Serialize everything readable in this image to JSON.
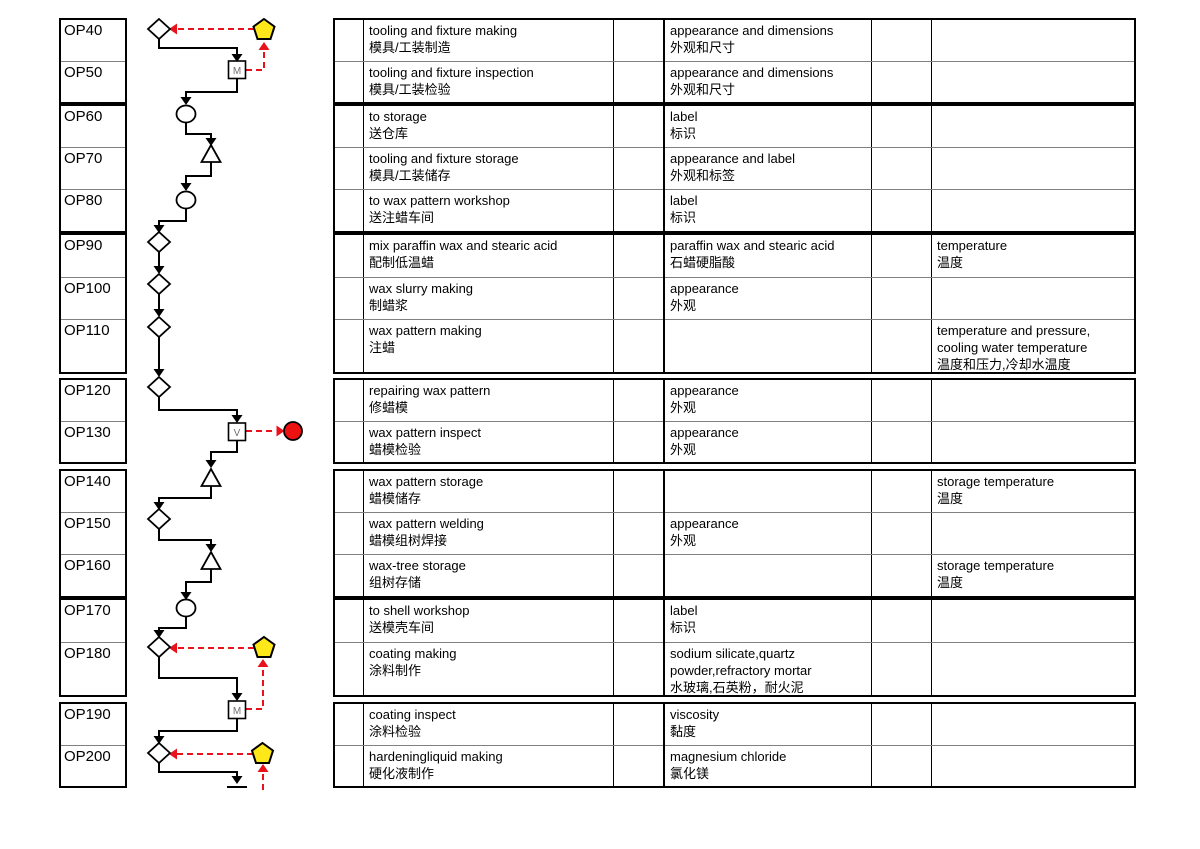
{
  "document": {
    "type": "process flow chart",
    "language": "English / Chinese"
  },
  "colors": {
    "line_black": "#000000",
    "grid_thin_gray": "#808080",
    "connector_red": "#e8111c",
    "pentagon_yellow": "#ffe81a",
    "alert_circle_red": "#ee1111",
    "box_letter_gray": "#707070",
    "background": "#ffffff"
  },
  "rows": [
    {
      "op": "OP40",
      "symbol": "diamond",
      "marker": "yellow-pentagon",
      "symbol_label": "",
      "operation_en": "tooling and fixture making",
      "operation_cn": "模具/工装制造",
      "characteristic_en": "appearance and dimensions",
      "characteristic_cn": "外观和尺寸",
      "control_en": "",
      "control_cn": ""
    },
    {
      "op": "OP50",
      "symbol": "square",
      "marker": "",
      "symbol_label": "M",
      "operation_en": "tooling and fixture inspection",
      "operation_cn": "模具/工装检验",
      "characteristic_en": "appearance and dimensions",
      "characteristic_cn": "外观和尺寸",
      "control_en": "",
      "control_cn": ""
    },
    {
      "op": "OP60",
      "symbol": "circle",
      "marker": "",
      "symbol_label": "",
      "operation_en": "to storage",
      "operation_cn": "送仓库",
      "characteristic_en": "label",
      "characteristic_cn": "标识",
      "control_en": "",
      "control_cn": ""
    },
    {
      "op": "OP70",
      "symbol": "triangle",
      "marker": "",
      "symbol_label": "",
      "operation_en": "tooling and fixture storage",
      "operation_cn": "模具/工装储存",
      "characteristic_en": "appearance and label",
      "characteristic_cn": "外观和标签",
      "control_en": "",
      "control_cn": ""
    },
    {
      "op": "OP80",
      "symbol": "circle",
      "marker": "",
      "symbol_label": "",
      "operation_en": "to wax pattern workshop",
      "operation_cn": "送注蜡车间",
      "characteristic_en": "label",
      "characteristic_cn": "标识",
      "control_en": "",
      "control_cn": ""
    },
    {
      "op": "OP90",
      "symbol": "diamond",
      "marker": "",
      "symbol_label": "",
      "operation_en": "mix paraffin wax and stearic acid",
      "operation_cn": "配制低温蜡",
      "characteristic_en": "paraffin wax and stearic acid",
      "characteristic_cn": "石蜡硬脂酸",
      "control_en": "temperature",
      "control_cn": "温度"
    },
    {
      "op": "OP100",
      "symbol": "diamond",
      "marker": "",
      "symbol_label": "",
      "operation_en": "wax slurry making",
      "operation_cn": "制蜡浆",
      "characteristic_en": "appearance",
      "characteristic_cn": "外观",
      "control_en": "",
      "control_cn": ""
    },
    {
      "op": "OP110",
      "symbol": "diamond",
      "marker": "",
      "symbol_label": "",
      "operation_en": "wax pattern making",
      "operation_cn": "注蜡",
      "characteristic_en": "",
      "characteristic_cn": "",
      "control_en": "temperature and pressure, cooling water temperature",
      "control_cn": "温度和压力,冷却水温度"
    },
    {
      "op": "OP120",
      "symbol": "diamond",
      "marker": "",
      "symbol_label": "",
      "operation_en": "repairing wax pattern",
      "operation_cn": "修蜡模",
      "characteristic_en": "appearance",
      "characteristic_cn": "外观",
      "control_en": "",
      "control_cn": ""
    },
    {
      "op": "OP130",
      "symbol": "square",
      "marker": "red-circle",
      "symbol_label": "V",
      "operation_en": "wax pattern inspect",
      "operation_cn": "蜡模检验",
      "characteristic_en": "appearance",
      "characteristic_cn": "外观",
      "control_en": "",
      "control_cn": ""
    },
    {
      "op": "OP140",
      "symbol": "triangle",
      "marker": "",
      "symbol_label": "",
      "operation_en": "wax pattern storage",
      "operation_cn": "蜡模储存",
      "characteristic_en": "",
      "characteristic_cn": "",
      "control_en": "storage temperature",
      "control_cn": "温度"
    },
    {
      "op": "OP150",
      "symbol": "diamond",
      "marker": "",
      "symbol_label": "",
      "operation_en": "wax pattern welding",
      "operation_cn": "蜡模组树焊接",
      "characteristic_en": "appearance",
      "characteristic_cn": "外观",
      "control_en": "",
      "control_cn": ""
    },
    {
      "op": "OP160",
      "symbol": "triangle",
      "marker": "",
      "symbol_label": "",
      "operation_en": "wax-tree storage",
      "operation_cn": "组树存储",
      "characteristic_en": "",
      "characteristic_cn": "",
      "control_en": "storage temperature",
      "control_cn": "温度"
    },
    {
      "op": "OP170",
      "symbol": "circle",
      "marker": "",
      "symbol_label": "",
      "operation_en": "to shell workshop",
      "operation_cn": "送模壳车间",
      "characteristic_en": "label",
      "characteristic_cn": "标识",
      "control_en": "",
      "control_cn": ""
    },
    {
      "op": "OP180",
      "symbol": "diamond",
      "marker": "yellow-pentagon",
      "symbol_label": "",
      "operation_en": "coating making",
      "operation_cn": "涂料制作",
      "characteristic_en": "sodium silicate,quartz powder,refractory mortar",
      "characteristic_cn": "水玻璃,石英粉，耐火泥",
      "control_en": "",
      "control_cn": ""
    },
    {
      "op": "OP190",
      "symbol": "square",
      "marker": "",
      "symbol_label": "M",
      "operation_en": "coating inspect",
      "operation_cn": "涂料检验",
      "characteristic_en": "viscosity",
      "characteristic_cn": "黏度",
      "control_en": "",
      "control_cn": ""
    },
    {
      "op": "OP200",
      "symbol": "diamond",
      "marker": "yellow-pentagon",
      "symbol_label": "",
      "operation_en": "hardeningliquid making",
      "operation_cn": "硬化液制作",
      "characteristic_en": "magnesium chloride",
      "characteristic_cn": "氯化镁",
      "control_en": "",
      "control_cn": ""
    }
  ]
}
